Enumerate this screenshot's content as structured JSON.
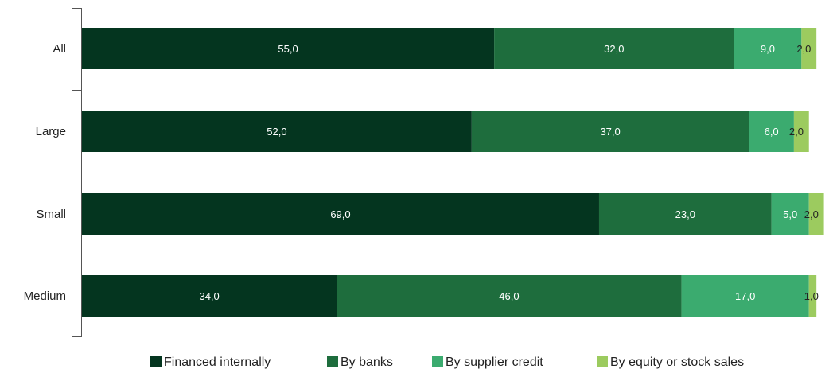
{
  "chart_data": {
    "type": "bar",
    "orientation": "horizontal",
    "stacked": true,
    "categories": [
      "All",
      "Large",
      "Small",
      "Medium"
    ],
    "series": [
      {
        "name": "Financed internally",
        "values": [
          55.0,
          52.0,
          69.0,
          34.0
        ],
        "color": "#04351f",
        "value_labels": [
          "55,0",
          "52,0",
          "69,0",
          "34,0"
        ],
        "label_color": "#ffffff"
      },
      {
        "name": "By banks",
        "values": [
          32.0,
          37.0,
          23.0,
          46.0
        ],
        "color": "#1e6d3d",
        "value_labels": [
          "32,0",
          "37,0",
          "23,0",
          "46,0"
        ],
        "label_color": "#ffffff"
      },
      {
        "name": "By supplier credit",
        "values": [
          9.0,
          6.0,
          5.0,
          17.0
        ],
        "color": "#3bab6f",
        "value_labels": [
          "9,0",
          "6,0",
          "5,0",
          "17,0"
        ],
        "label_color": "#ffffff"
      },
      {
        "name": "By equity or stock sales",
        "values": [
          2.0,
          2.0,
          2.0,
          1.0
        ],
        "color": "#9ccb5f",
        "value_labels": [
          "2,0",
          "2,0",
          "2,0",
          "1,0"
        ],
        "label_color": "#222222"
      }
    ],
    "xlim": [
      0,
      100
    ],
    "legend_position": "bottom",
    "grid": false
  }
}
